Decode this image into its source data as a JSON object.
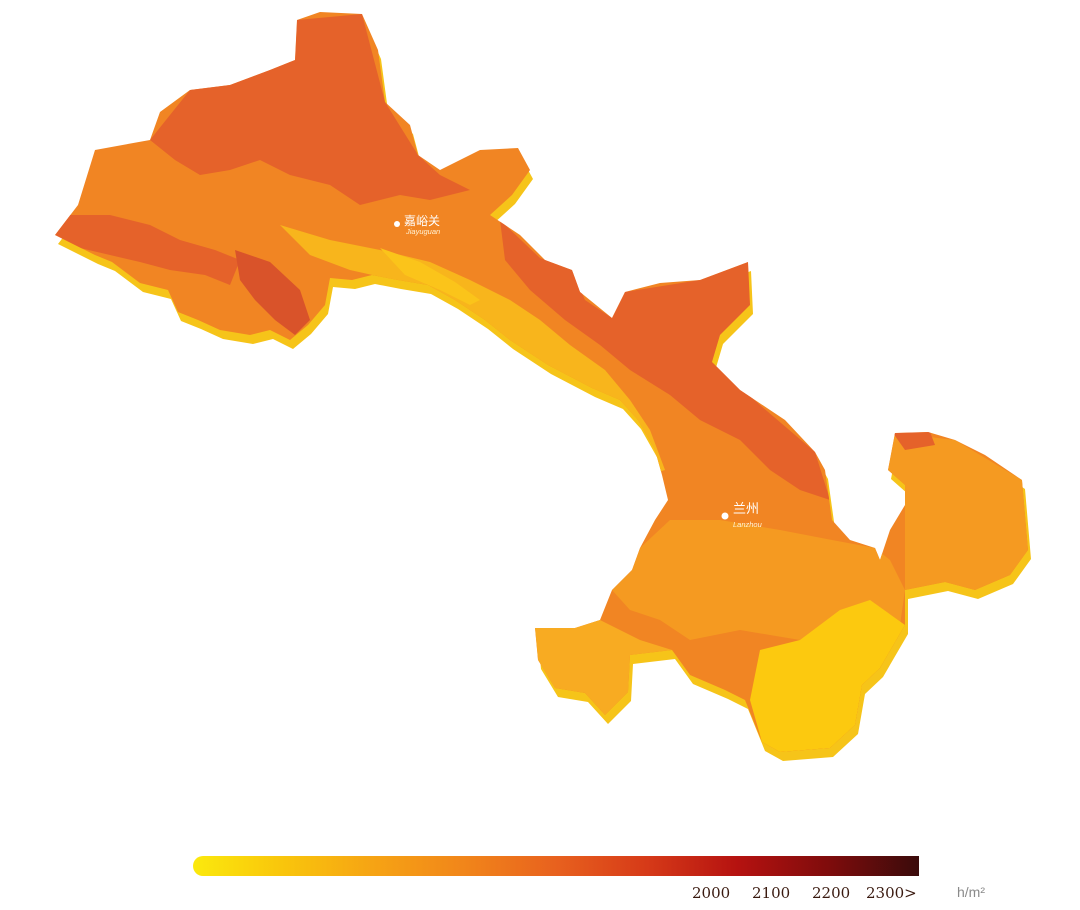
{
  "map": {
    "region_colors": {
      "light": "#fcc90f",
      "mid": "#f6a11f",
      "orange": "#f18523",
      "dark": "#e5622a",
      "shadow": "#f7c81a"
    },
    "cities": [
      {
        "name": "嘉峪关",
        "sub": "Jiayuguan"
      },
      {
        "name": "兰州",
        "sub": "Lanzhou"
      }
    ]
  },
  "legend": {
    "colors": [
      "#fbe90d",
      "#f9c50c",
      "#f6a314",
      "#f1851a",
      "#e8611e",
      "#d63a18",
      "#b51210",
      "#7f0c0c",
      "#3a0b0b"
    ],
    "ticks": [
      "2000",
      "2100",
      "2200",
      "2300>"
    ],
    "unit": "h/m²"
  }
}
